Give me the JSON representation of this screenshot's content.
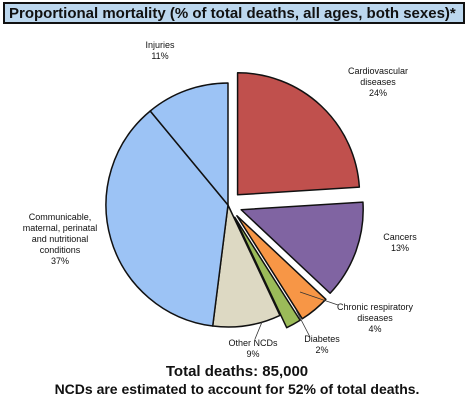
{
  "title": "Proportional mortality (% of total deaths, all ages, both sexes)*",
  "footer": {
    "total": "Total deaths: 85,000",
    "ncd_note": "NCDs are estimated to account for 52% of total deaths."
  },
  "chart_data": {
    "type": "pie",
    "title": "Proportional mortality (% of total deaths, all ages, both sexes)*",
    "slices": [
      {
        "name": "Cardiovascular diseases",
        "label_lines": [
          "Cardiovascular",
          "diseases"
        ],
        "value_label": "24%",
        "value": 24,
        "color": "#c0504d",
        "exploded": true
      },
      {
        "name": "Cancers",
        "label_lines": [
          "Cancers"
        ],
        "value_label": "13%",
        "value": 13,
        "color": "#8064a2",
        "exploded": true
      },
      {
        "name": "Chronic respiratory diseases",
        "label_lines": [
          "Chronic respiratory",
          "diseases"
        ],
        "value_label": "4%",
        "value": 4,
        "color": "#f79646",
        "exploded": true
      },
      {
        "name": "Diabetes",
        "label_lines": [
          "Diabetes"
        ],
        "value_label": "2%",
        "value": 2,
        "color": "#9bbb59",
        "exploded": true
      },
      {
        "name": "Other NCDs",
        "label_lines": [
          "Other NCDs"
        ],
        "value_label": "9%",
        "value": 9,
        "color": "#ddd9c3",
        "exploded": false
      },
      {
        "name": "Communicable, maternal, perinatal and nutritional conditions",
        "label_lines": [
          "Communicable,",
          "maternal, perinatal",
          "and nutritional",
          "conditions"
        ],
        "value_label": "37%",
        "value": 37,
        "color": "#9cc3f5",
        "exploded": false
      },
      {
        "name": "Injuries",
        "label_lines": [
          "Injuries"
        ],
        "value_label": "11%",
        "value": 11,
        "color": "#9cc3f5",
        "exploded": false
      }
    ],
    "start_angle": "12 o'clock",
    "direction": "clockwise",
    "legend": "none (callout labels)"
  }
}
